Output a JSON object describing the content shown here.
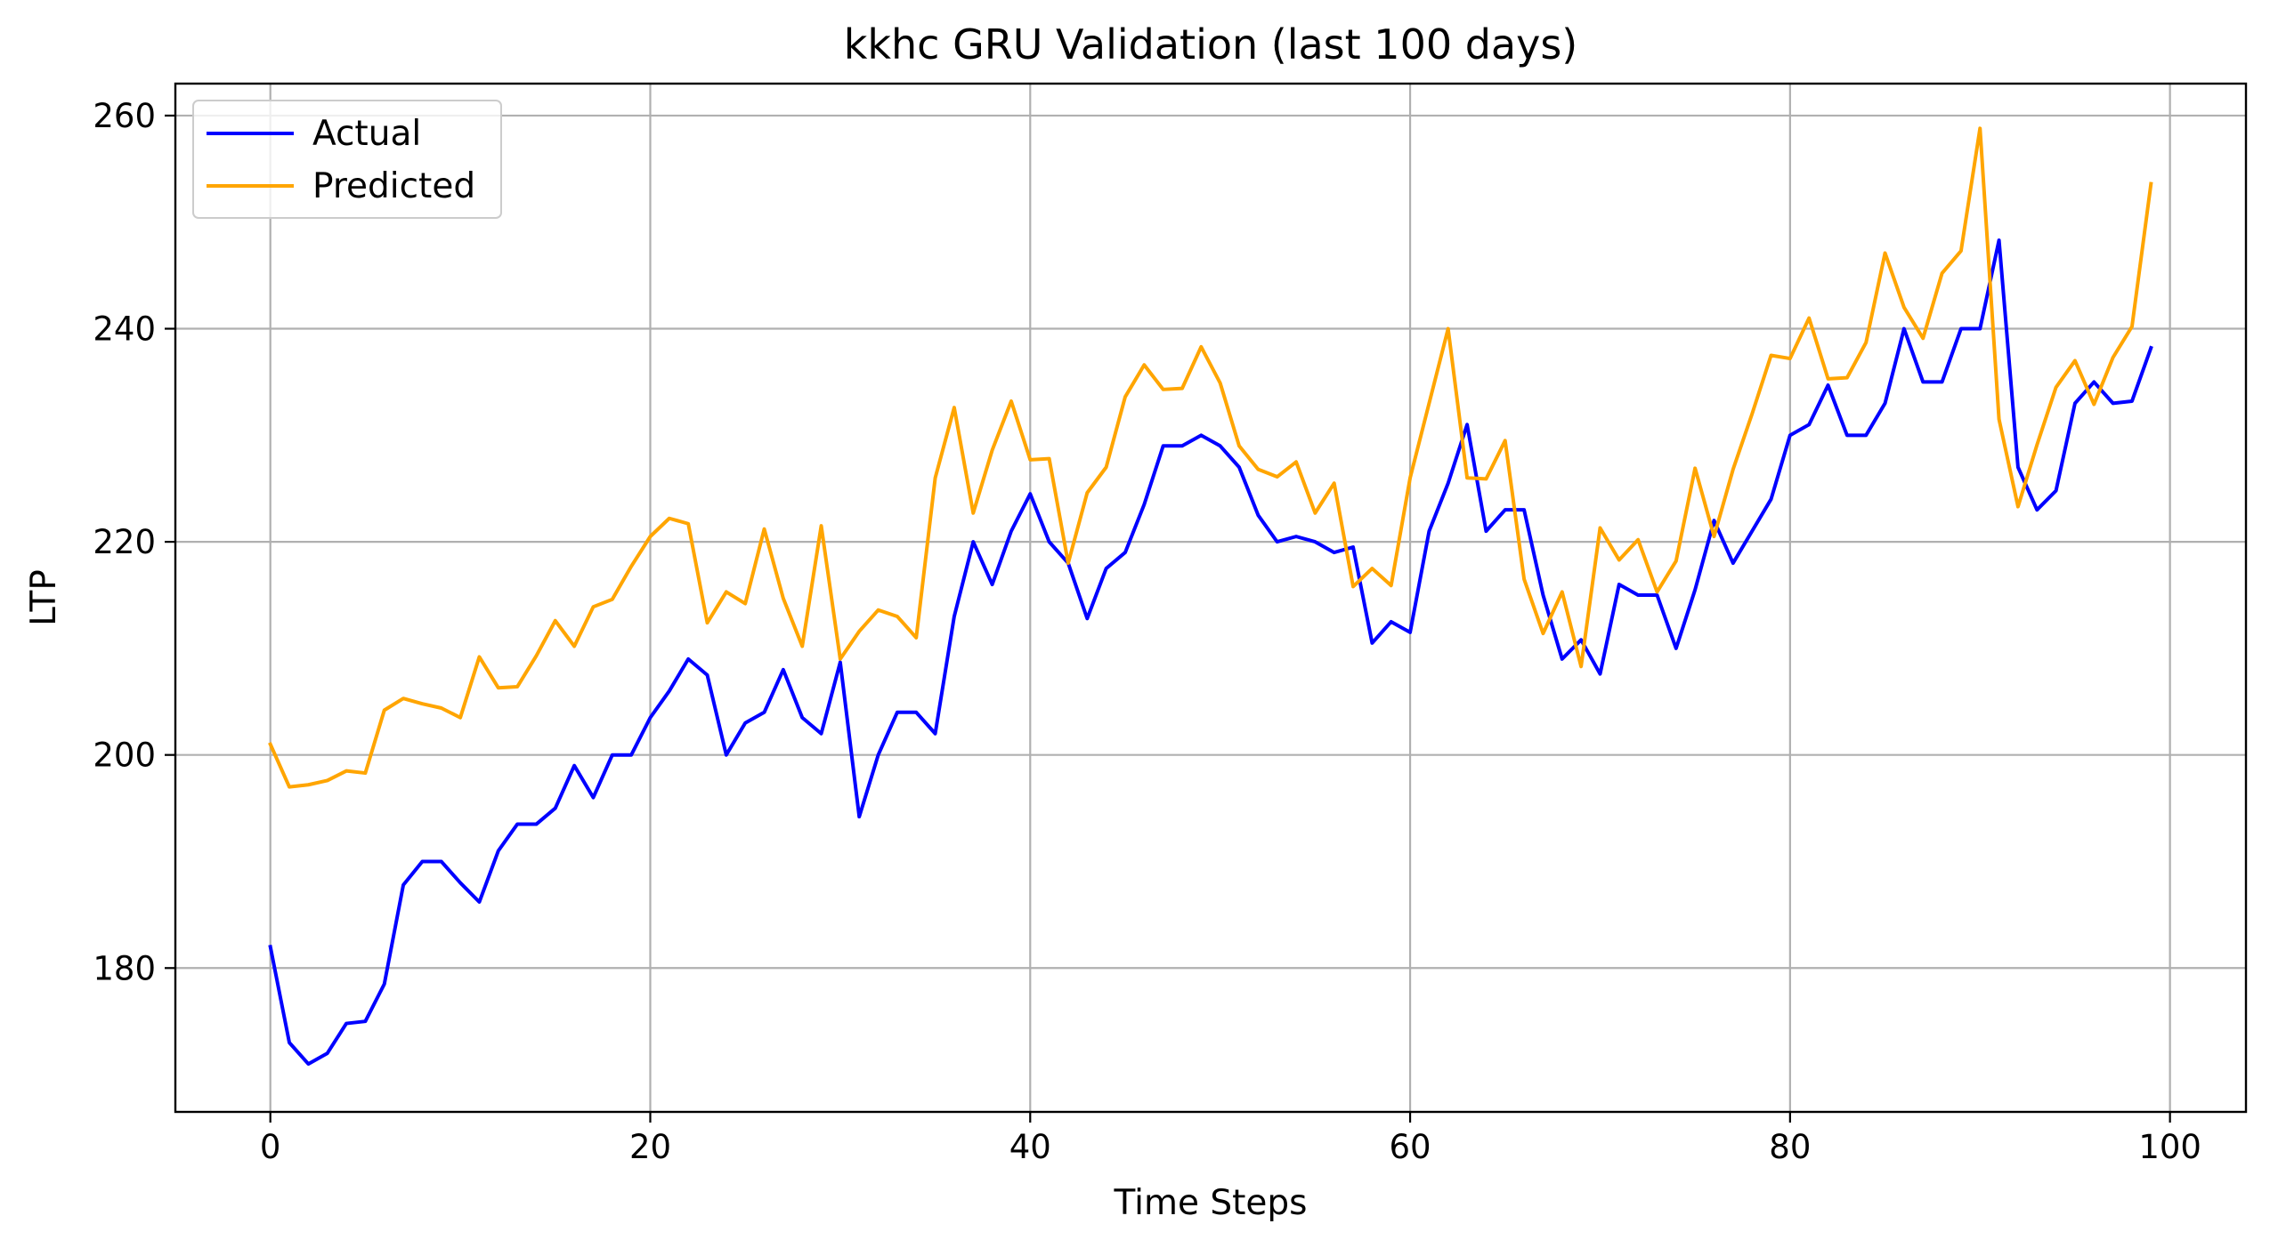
{
  "chart_data": {
    "type": "line",
    "title": "kkhc GRU Validation (last 100 days)",
    "xlabel": "Time Steps",
    "ylabel": "LTP",
    "xlim": [
      -5,
      104
    ],
    "ylim": [
      166.5,
      263
    ],
    "xticks": [
      0,
      20,
      40,
      60,
      80,
      100
    ],
    "yticks": [
      180,
      200,
      220,
      240,
      260
    ],
    "xtick_labels": [
      "0",
      "20",
      "40",
      "60",
      "80",
      "100"
    ],
    "ytick_labels": [
      "180",
      "200",
      "220",
      "240",
      "260"
    ],
    "grid": true,
    "legend_position": "top-left",
    "series": [
      {
        "name": "Actual",
        "color": "#0000ff",
        "values": [
          182,
          173,
          171,
          172,
          174.8,
          175,
          178.5,
          187.8,
          190,
          190,
          188,
          186.2,
          191,
          193.5,
          193.5,
          195,
          199,
          196,
          200,
          200,
          203.5,
          206,
          209,
          207.5,
          200,
          203,
          204,
          208,
          203.5,
          202,
          208.7,
          194.2,
          200,
          204,
          204,
          202,
          213,
          220,
          216,
          221,
          224.5,
          220,
          218,
          212.8,
          217.5,
          219,
          223.5,
          229,
          229,
          230,
          229,
          227,
          222.5,
          220,
          220.5,
          220,
          219,
          219.5,
          210.5,
          212.5,
          211.5,
          221,
          225.5,
          231,
          221,
          223,
          223,
          215,
          209,
          210.8,
          207.6,
          216,
          215,
          215,
          210,
          215.5,
          222,
          218,
          221,
          224,
          230,
          231,
          234.7,
          230,
          230,
          233,
          240,
          235,
          235,
          240,
          240,
          248.3,
          227,
          223,
          224.8,
          233,
          235,
          233,
          233.2,
          238.2
        ]
      },
      {
        "name": "Predicted",
        "color": "#ffa500",
        "values": [
          201,
          197,
          197.2,
          197.6,
          198.5,
          198.3,
          204.2,
          205.3,
          204.8,
          204.4,
          203.5,
          209.2,
          206.3,
          206.4,
          209.3,
          212.6,
          210.2,
          213.9,
          214.6,
          217.7,
          220.5,
          222.2,
          221.7,
          212.4,
          215.3,
          214.2,
          221.2,
          214.7,
          210.2,
          221.5,
          209,
          211.6,
          213.6,
          213,
          211,
          226,
          232.6,
          222.7,
          228.6,
          233.2,
          227.7,
          227.8,
          218,
          224.6,
          227,
          233.6,
          236.6,
          234.3,
          234.4,
          238.3,
          234.9,
          229,
          226.8,
          226.1,
          227.5,
          222.7,
          225.5,
          215.8,
          217.5,
          215.9,
          226,
          233,
          240,
          226,
          225.9,
          229.5,
          216.5,
          211.4,
          215.3,
          208.3,
          221.3,
          218.3,
          220.2,
          215.3,
          218.2,
          226.9,
          220.5,
          226.8,
          232,
          237.5,
          237.2,
          241,
          235.3,
          235.4,
          238.7,
          247.1,
          242,
          239.1,
          245.2,
          247.3,
          258.8,
          231.5,
          223.3,
          229.1,
          234.5,
          237,
          232.9,
          237.3,
          240.2,
          253.6
        ]
      }
    ]
  }
}
